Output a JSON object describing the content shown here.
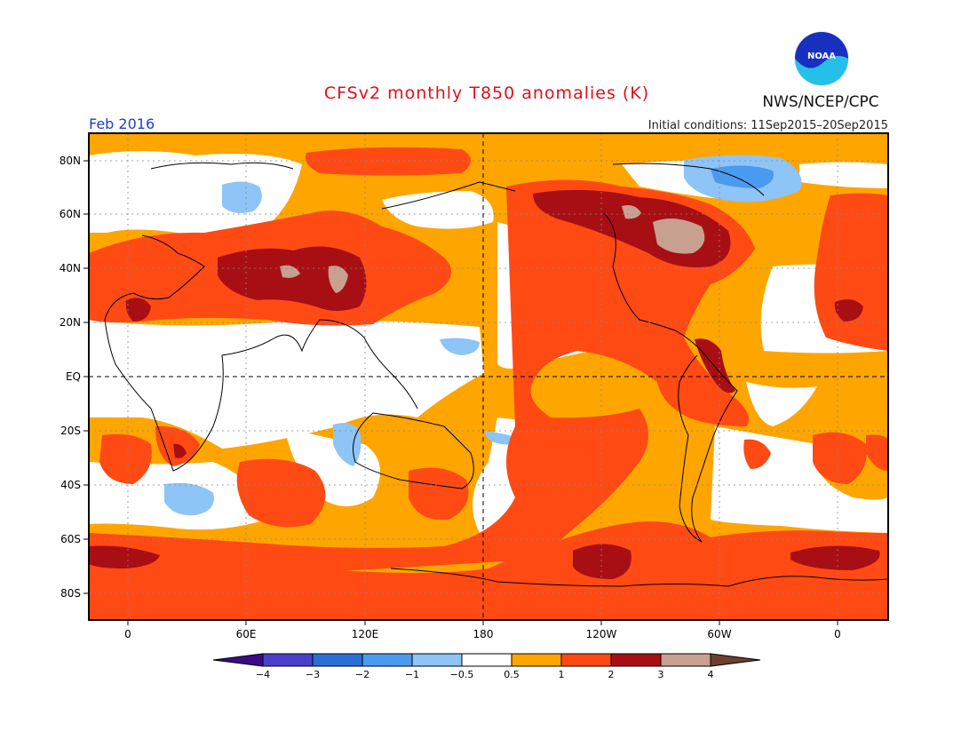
{
  "title": "CFSv2 monthly T850 anomalies (K)",
  "valid_month": "Feb 2016",
  "initial_conditions": "Initial conditions: 11Sep2015–20Sep2015",
  "agency_logo_text": "NOAA",
  "agency": "NWS/NCEP/CPC",
  "lat_labels": [
    "80N",
    "60N",
    "40N",
    "20N",
    "EQ",
    "20S",
    "40S",
    "60S",
    "80S"
  ],
  "lon_labels": [
    "0",
    "60E",
    "120E",
    "180",
    "120W",
    "60W",
    "0"
  ],
  "legend": {
    "colors": [
      "#3a0a8a",
      "#4a3fc8",
      "#2b6fd6",
      "#4a9af0",
      "#8ec4f6",
      "#ffffff",
      "#ffa500",
      "#ff4a14",
      "#a80f14",
      "#c8a090",
      "#6b4030"
    ],
    "labels": [
      "−4",
      "−3",
      "−2",
      "−1",
      "−0.5",
      "0.5",
      "1",
      "2",
      "3",
      "4"
    ]
  },
  "colors": {
    "title": "#e0101a",
    "valid_month": "#1a3fd0",
    "background_anomaly": "#ffa500"
  }
}
